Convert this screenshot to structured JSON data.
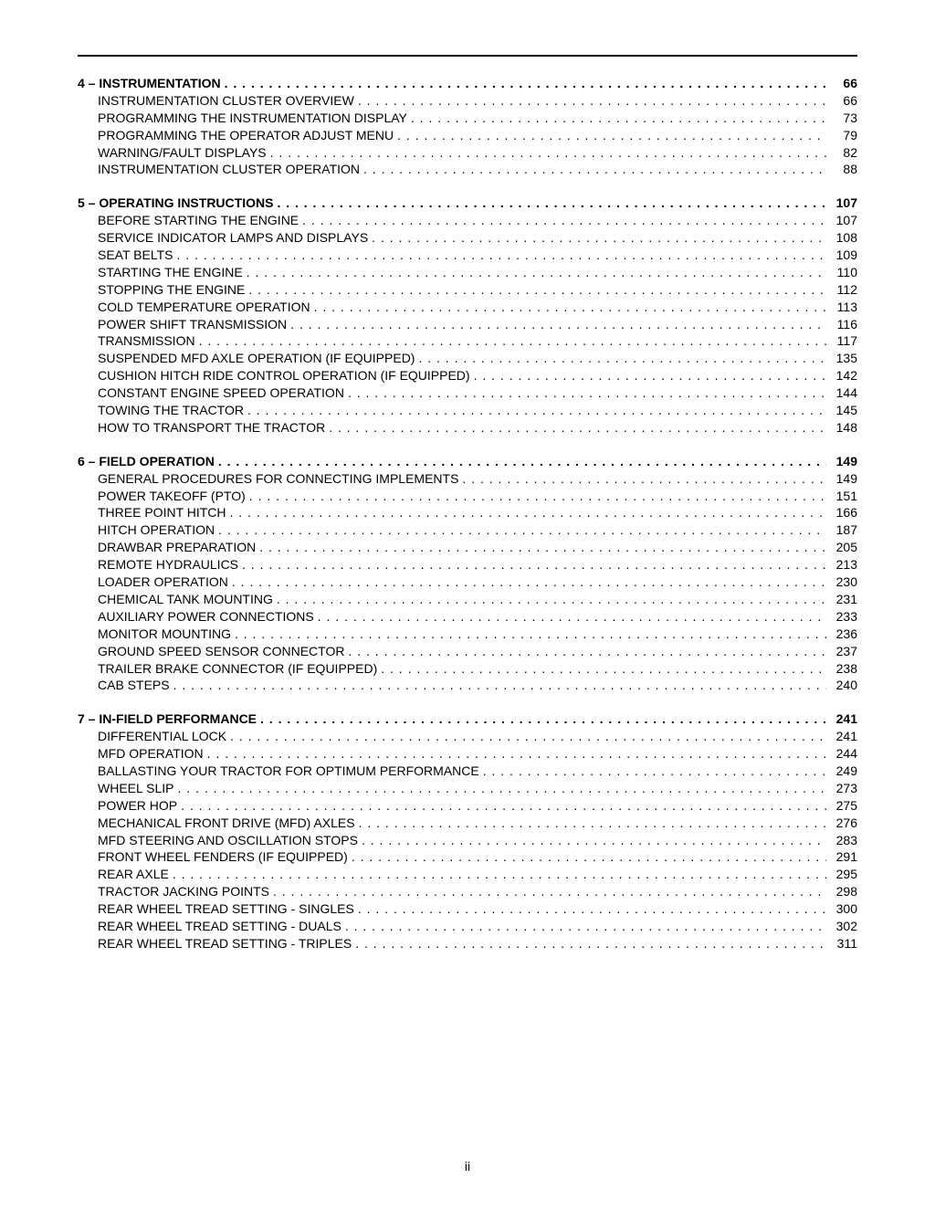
{
  "page_number": "ii",
  "sections": [
    {
      "num": "4",
      "title": "INSTRUMENTATION",
      "page": "66",
      "items": [
        {
          "label": "INSTRUMENTATION CLUSTER OVERVIEW",
          "page": "66"
        },
        {
          "label": "PROGRAMMING THE INSTRUMENTATION DISPLAY",
          "page": "73"
        },
        {
          "label": "PROGRAMMING THE OPERATOR ADJUST MENU",
          "page": "79"
        },
        {
          "label": "WARNING/FAULT DISPLAYS",
          "page": "82"
        },
        {
          "label": "INSTRUMENTATION CLUSTER OPERATION",
          "page": "88"
        }
      ]
    },
    {
      "num": "5",
      "title": "OPERATING INSTRUCTIONS",
      "page": "107",
      "items": [
        {
          "label": "BEFORE STARTING THE ENGINE",
          "page": "107"
        },
        {
          "label": "SERVICE INDICATOR LAMPS AND DISPLAYS",
          "page": "108"
        },
        {
          "label": "SEAT BELTS",
          "page": "109"
        },
        {
          "label": "STARTING THE ENGINE",
          "page": "110"
        },
        {
          "label": "STOPPING THE ENGINE",
          "page": "112"
        },
        {
          "label": "COLD TEMPERATURE OPERATION",
          "page": "113"
        },
        {
          "label": "POWER SHIFT TRANSMISSION",
          "page": "116"
        },
        {
          "label": "TRANSMISSION",
          "page": "117"
        },
        {
          "label": "SUSPENDED MFD AXLE OPERATION (IF EQUIPPED)",
          "page": "135"
        },
        {
          "label": "CUSHION HITCH RIDE CONTROL OPERATION (IF EQUIPPED)",
          "page": "142"
        },
        {
          "label": "CONSTANT ENGINE SPEED OPERATION",
          "page": "144"
        },
        {
          "label": "TOWING THE TRACTOR",
          "page": "145"
        },
        {
          "label": "HOW TO TRANSPORT THE TRACTOR",
          "page": "148"
        }
      ]
    },
    {
      "num": "6",
      "title": "FIELD OPERATION",
      "page": "149",
      "items": [
        {
          "label": "GENERAL PROCEDURES FOR CONNECTING IMPLEMENTS",
          "page": "149"
        },
        {
          "label": "POWER TAKEOFF (PTO)",
          "page": "151"
        },
        {
          "label": "THREE POINT HITCH",
          "page": "166"
        },
        {
          "label": "HITCH OPERATION",
          "page": "187"
        },
        {
          "label": "DRAWBAR PREPARATION",
          "page": "205"
        },
        {
          "label": "REMOTE HYDRAULICS",
          "page": "213"
        },
        {
          "label": "LOADER OPERATION",
          "page": "230"
        },
        {
          "label": "CHEMICAL TANK MOUNTING",
          "page": "231"
        },
        {
          "label": "AUXILIARY POWER CONNECTIONS",
          "page": "233"
        },
        {
          "label": "MONITOR MOUNTING",
          "page": "236"
        },
        {
          "label": "GROUND SPEED SENSOR CONNECTOR",
          "page": "237"
        },
        {
          "label": "TRAILER BRAKE CONNECTOR (IF EQUIPPED)",
          "page": "238"
        },
        {
          "label": "CAB STEPS",
          "page": "240"
        }
      ]
    },
    {
      "num": "7",
      "title": "IN-FIELD PERFORMANCE",
      "page": "241",
      "items": [
        {
          "label": "DIFFERENTIAL LOCK",
          "page": "241"
        },
        {
          "label": "MFD OPERATION",
          "page": "244"
        },
        {
          "label": "BALLASTING YOUR TRACTOR FOR OPTIMUM PERFORMANCE",
          "page": "249"
        },
        {
          "label": "WHEEL SLIP",
          "page": "273"
        },
        {
          "label": "POWER HOP",
          "page": "275"
        },
        {
          "label": "MECHANICAL FRONT DRIVE (MFD) AXLES",
          "page": "276"
        },
        {
          "label": "MFD STEERING AND OSCILLATION STOPS",
          "page": "283"
        },
        {
          "label": "FRONT WHEEL FENDERS (IF EQUIPPED)",
          "page": "291"
        },
        {
          "label": "REAR AXLE",
          "page": "295"
        },
        {
          "label": "TRACTOR JACKING POINTS",
          "page": "298"
        },
        {
          "label": "REAR WHEEL TREAD SETTING - SINGLES",
          "page": "300"
        },
        {
          "label": "REAR WHEEL TREAD SETTING - DUALS",
          "page": "302"
        },
        {
          "label": "REAR WHEEL TREAD SETTING - TRIPLES",
          "page": "311"
        }
      ]
    }
  ]
}
